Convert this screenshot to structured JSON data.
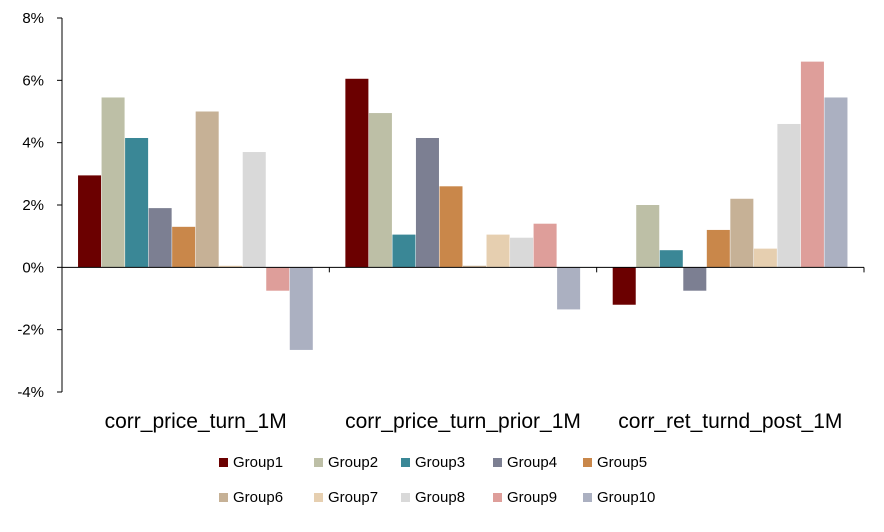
{
  "chart_data": {
    "type": "bar",
    "categories": [
      "corr_price_turn_1M",
      "corr_price_turn_prior_1M",
      "corr_ret_turnd_post_1M"
    ],
    "ylim": [
      -4,
      8
    ],
    "yticks": [
      -4,
      -2,
      0,
      2,
      4,
      6,
      8
    ],
    "ytick_labels": [
      "-4%",
      "-2%",
      "0%",
      "2%",
      "4%",
      "6%",
      "8%"
    ],
    "grid": false,
    "legend_position": "bottom",
    "series": [
      {
        "name": "Group1",
        "color": "#6B0000",
        "values": [
          2.95,
          6.05,
          -1.2
        ]
      },
      {
        "name": "Group2",
        "color": "#BDBFA6",
        "values": [
          5.45,
          4.95,
          2.0
        ]
      },
      {
        "name": "Group3",
        "color": "#3A8796",
        "values": [
          4.15,
          1.05,
          0.55
        ]
      },
      {
        "name": "Group4",
        "color": "#7C7F92",
        "values": [
          1.9,
          4.15,
          -0.75
        ]
      },
      {
        "name": "Group5",
        "color": "#C9874A",
        "values": [
          1.3,
          2.6,
          1.2
        ]
      },
      {
        "name": "Group6",
        "color": "#C6B196",
        "values": [
          5.0,
          0.05,
          2.2
        ]
      },
      {
        "name": "Group7",
        "color": "#E6CFB0",
        "values": [
          0.05,
          1.05,
          0.6
        ]
      },
      {
        "name": "Group8",
        "color": "#D9D9D9",
        "values": [
          3.7,
          0.95,
          4.6
        ]
      },
      {
        "name": "Group9",
        "color": "#DE9E9A",
        "values": [
          -0.75,
          1.4,
          6.6
        ]
      },
      {
        "name": "Group10",
        "color": "#ABB0C1",
        "values": [
          -2.65,
          -1.35,
          5.45
        ]
      }
    ]
  }
}
